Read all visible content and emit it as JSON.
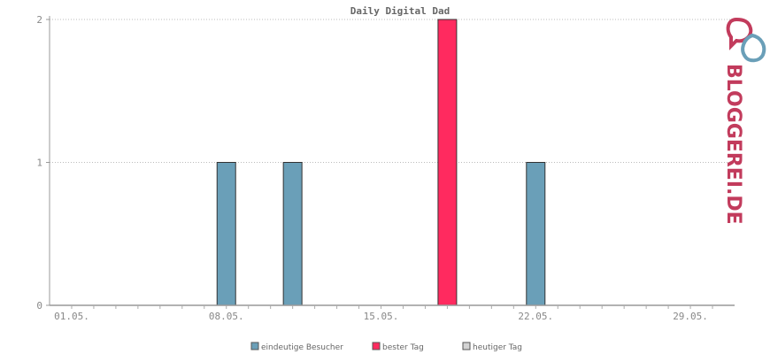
{
  "chart_data": {
    "type": "bar",
    "title": "Daily Digital Dad",
    "xlabel": "",
    "ylabel": "",
    "ylim": [
      0,
      2
    ],
    "y_ticks": [
      "0",
      "1",
      "2"
    ],
    "x_tick_labels": [
      "01.05.",
      "08.05.",
      "15.05.",
      "22.05.",
      "29.05."
    ],
    "x_tick_days": [
      1,
      8,
      15,
      22,
      29
    ],
    "x_range_days": [
      0,
      31
    ],
    "grid": "horizontal-dotted",
    "legend_placement": "bottom",
    "series": [
      {
        "name": "eindeutige Besucher",
        "color": "#6a9fb8",
        "points": [
          {
            "day": 8,
            "value": 1
          },
          {
            "day": 11,
            "value": 1
          },
          {
            "day": 22,
            "value": 1
          }
        ]
      },
      {
        "name": "bester Tag",
        "color": "#ff2a5f",
        "points": [
          {
            "day": 18,
            "value": 2
          }
        ]
      },
      {
        "name": "heutiger Tag",
        "color": "#d3d3d3",
        "points": []
      }
    ]
  },
  "branding": {
    "logo_text": "BLOGGEREI.DE",
    "logo_colors": [
      "#c23b5c",
      "#6a9fb8"
    ]
  }
}
